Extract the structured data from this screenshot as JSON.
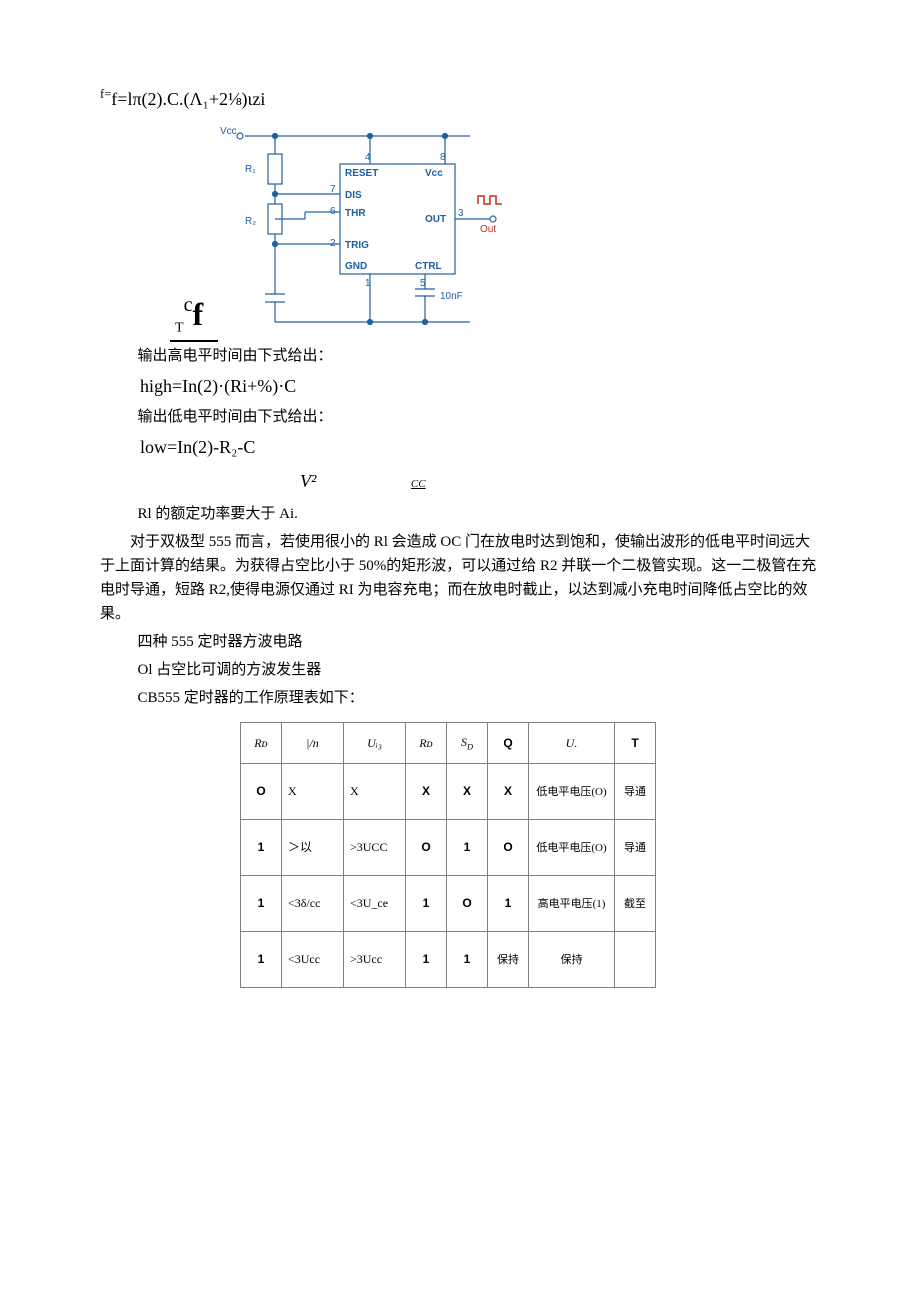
{
  "formula_top": "f=lπ(2).C.(Λ₁+2⅛)ιzi",
  "circuit": {
    "vcc": "V꜀꜀",
    "r1": "R₁",
    "r2": "R₂",
    "pins": {
      "reset": "RESET",
      "vcc_pin": "V꜀꜀",
      "dis": "DIS",
      "thr": "THR",
      "out": "OUT",
      "trig": "TRIG",
      "gnd": "GND",
      "ctrl": "CTRL"
    },
    "pin_nums": {
      "p1": "1",
      "p2": "2",
      "p3": "3",
      "p4": "4",
      "p5": "5",
      "p6": "6",
      "p7": "7",
      "p8": "8"
    },
    "out_label": "Out",
    "cap": "10nF",
    "cf": {
      "t": "T",
      "c": "c",
      "f": "f"
    }
  },
  "text": {
    "high_intro": "输出高电平时间由下式给出：",
    "high_formula": "high=In(2)·(Ri+%)·C",
    "low_intro": "输出低电平时间由下式给出：",
    "low_formula": "low=In(2)-R₂-C",
    "v2": "V²",
    "cc_sub": "CC",
    "r1_power": "Rl 的额定功率要大于 Ai.",
    "para1": "对于双极型 555 而言，若使用很小的 Rl 会造成 OC 门在放电时达到饱和，使输出波形的低电平时间远大于上面计算的结果。为获得占空比小于 50%的矩形波，可以通过给 R2 并联一个二极管实现。这一二极管在充电时导通，短路 R2,使得电源仅通过 RI 为电容充电；而在放电时截止，以达到减小充电时间降低占空比的效果。",
    "line2": "四种 555 定时器方波电路",
    "line3": "Ol 占空比可调的方波发生器",
    "line4": "CB555 定时器的工作原理表如下："
  },
  "table": {
    "headers": [
      "Rᴅ",
      "|/n",
      "Uᵢ₃",
      "Rᴅ",
      "S_D",
      "Q",
      "U.",
      "T"
    ],
    "rows": [
      [
        "O",
        "X",
        "X",
        "X",
        "X",
        "X",
        "低电平电压(O)",
        "导通"
      ],
      [
        "1",
        "＞以",
        ">3UCC",
        "O",
        "1",
        "O",
        "低电平电压(O)",
        "导通"
      ],
      [
        "1",
        "<3δ/cc",
        "<3U_ce",
        "1",
        "O",
        "1",
        "高电平电压(1)",
        "截至"
      ],
      [
        "1",
        "<3Ucc",
        ">3Ucc",
        "1",
        "1",
        "保持",
        "保持",
        ""
      ]
    ],
    "col_classes": [
      "col-narrow",
      "col-mid",
      "col-mid",
      "col-narrow",
      "col-narrow",
      "col-narrow",
      "col-wide",
      "col-t"
    ]
  }
}
